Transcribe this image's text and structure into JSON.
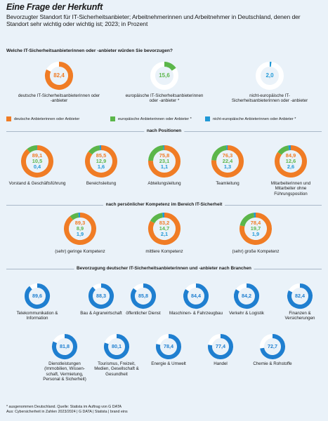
{
  "title": "Eine Frage der Herkunft",
  "subtitle": "Bevorzugter Standort für IT-Sicherheitsanbieter; Arbeitnehmerinnen und Arbeitnehmer in Deutschland, denen der Standort sehr wichtig oder wichtig ist; 2023; in Prozent",
  "colors": {
    "german": "#f07c25",
    "european": "#5bb64a",
    "non_european": "#1f98d6",
    "industry": "#1f7fd0",
    "track": "#ffffff",
    "background": "#eaf2f9"
  },
  "sections": {
    "question": "Welche IT-Sicherheitsanbieterinnen oder -anbieter würden Sie bevorzugen?",
    "positions": "nach Positionen",
    "competence": "nach persönlicher Kompetenz im Bereich IT-Sicherheit",
    "industries": "Bevorzugung deutscher IT-Sicherheitsanbieterinnen und -anbieter nach Branchen"
  },
  "legend": [
    "deutsche Anbieterinnen oder Anbieter",
    "europäische Anbieterinnen oder Anbieter *",
    "nicht-europäische Anbieterinnen oder Anbieter *"
  ],
  "footer": {
    "note": "* ausgenommen Deutschland. Quelle: Statista im Auftrag von G DATA",
    "source": "Aus: Cybersicherheit in Zahlen 2023/2024 | G DATA | Statista | brand eins"
  },
  "chart_data": [
    {
      "type": "pie",
      "variant": "donut",
      "title": "Welche IT-Sicherheitsanbieterinnen oder -anbieter würden Sie bevorzugen?",
      "categories": [
        "deutsche IT-Sicherheitsanbieterinnen oder -anbieter",
        "europäische IT-Sicherheitsanbieterinnen oder -anbieter *",
        "nicht-europäische IT-Sicherheitsanbieterinnen oder -anbieter"
      ],
      "values": [
        82.4,
        15.6,
        2.0
      ],
      "value_labels": [
        "82,4",
        "15,6",
        "2,0"
      ]
    },
    {
      "type": "pie",
      "variant": "donut",
      "title": "nach Positionen",
      "categories": [
        "Vorstand & Geschäftsführung",
        "Bereichsleitung",
        "Abteilungsleitung",
        "Teamleitung",
        "Mitarbeiterinnen und Mitarbeiter ohne Führungsposition"
      ],
      "series": [
        {
          "name": "deutsche Anbieterinnen oder Anbieter",
          "values": [
            89.1,
            85.5,
            75.8,
            76.3,
            84.9
          ],
          "value_labels": [
            "89,1",
            "85,5",
            "75,8",
            "76,3",
            "84,9"
          ]
        },
        {
          "name": "europäische Anbieterinnen oder Anbieter *",
          "values": [
            10.5,
            12.9,
            23.1,
            22.4,
            12.6
          ],
          "value_labels": [
            "10,5",
            "12,9",
            "23,1",
            "22,4",
            "12,6"
          ]
        },
        {
          "name": "nicht-europäische Anbieterinnen oder Anbieter *",
          "values": [
            0.4,
            1.6,
            1.1,
            1.3,
            2.6
          ],
          "value_labels": [
            "0,4",
            "1,6",
            "1,1",
            "1,3",
            "2,6"
          ]
        }
      ]
    },
    {
      "type": "pie",
      "variant": "donut",
      "title": "nach persönlicher Kompetenz im Bereich IT-Sicherheit",
      "categories": [
        "(sehr) geringe Kompetenz",
        "mittlere Kompetenz",
        "(sehr) große Kompetenz"
      ],
      "series": [
        {
          "name": "deutsche Anbieterinnen oder Anbieter",
          "values": [
            89.3,
            83.2,
            78.4
          ],
          "value_labels": [
            "89,3",
            "83,2",
            "78,4"
          ]
        },
        {
          "name": "europäische Anbieterinnen oder Anbieter *",
          "values": [
            8.9,
            14.7,
            19.7
          ],
          "value_labels": [
            "8,9",
            "14,7",
            "19,7"
          ]
        },
        {
          "name": "nicht-europäische Anbieterinnen oder Anbieter *",
          "values": [
            1.9,
            2.1,
            1.9
          ],
          "value_labels": [
            "1,9",
            "2,1",
            "1,9"
          ]
        }
      ]
    },
    {
      "type": "pie",
      "variant": "donut",
      "title": "Bevorzugung deutscher IT-Sicherheitsanbieterinnen und -anbieter nach Branchen",
      "categories": [
        "Telekommunikation & Information",
        "Bau & Agrarwirtschaft",
        "öffentlicher Dienst",
        "Maschinen- & Fahrzeugbau",
        "Verkehr & Logistik",
        "Finanzen & Versicherungen",
        "Dienstleistungen (Immobilien, Wissen-schaft, Vermietung, Personal & Sicherheit)",
        "Tourismus, Freizeit, Medien, Gesellschaft & Gesundheit",
        "Energie & Umwelt",
        "Handel",
        "Chemie & Rohstoffe"
      ],
      "values": [
        89.6,
        88.3,
        85.8,
        84.4,
        84.2,
        82.4,
        81.8,
        80.1,
        78.4,
        77.4,
        72.7
      ],
      "value_labels": [
        "89,6",
        "88,3",
        "85,8",
        "84,4",
        "84,2",
        "82,4",
        "81,8",
        "80,1",
        "78,4",
        "77,4",
        "72,7"
      ]
    }
  ]
}
